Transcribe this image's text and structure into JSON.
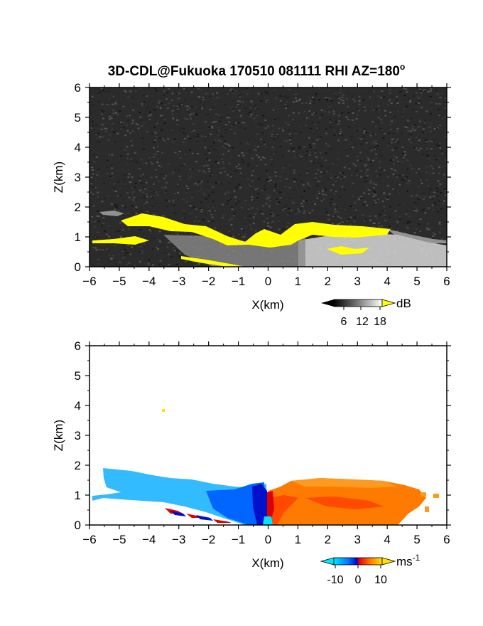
{
  "title": "3D-CDL@Fukuoka 170510 081111 RHI AZ=180",
  "title_superscript": "o",
  "chart_data": [
    {
      "type": "heatmap",
      "name": "intensity",
      "xlabel": "X(km)",
      "ylabel": "Z(km)",
      "xlim": [
        -6,
        6
      ],
      "ylim": [
        0,
        6
      ],
      "xticks": [
        "-6",
        "-5",
        "-4",
        "-3",
        "-2",
        "-1",
        "0",
        "1",
        "2",
        "3",
        "4",
        "5",
        "6"
      ],
      "yticks": [
        "0",
        "1",
        "2",
        "3",
        "4",
        "5",
        "6"
      ],
      "colorbar": {
        "unit": "dB",
        "ticks": [
          "6",
          "12",
          "18"
        ],
        "range": [
          0,
          20
        ],
        "saturation_color": "#ffff00"
      },
      "background_noise_color": "#2b2b2b",
      "echo_layer_top_km": [
        [
          -6,
          0.9
        ],
        [
          -5.5,
          0.85
        ],
        [
          -5,
          1.2
        ],
        [
          -4,
          1.3
        ],
        [
          -3,
          1.25
        ],
        [
          -2,
          1.2
        ],
        [
          -1,
          0.9
        ],
        [
          0,
          1.2
        ],
        [
          1,
          1.45
        ],
        [
          2,
          1.4
        ],
        [
          3,
          1.35
        ],
        [
          4,
          1.3
        ],
        [
          5,
          0.9
        ],
        [
          6,
          0.8
        ]
      ],
      "echo_layer_bottom_km": [
        [
          -6,
          0.8
        ],
        [
          -5,
          0.7
        ],
        [
          -4,
          0.75
        ],
        [
          -3,
          0.7
        ],
        [
          -2,
          0.5
        ],
        [
          -1,
          0.35
        ],
        [
          0,
          0.3
        ],
        [
          1,
          0.0
        ],
        [
          2,
          0.0
        ],
        [
          3,
          0.0
        ],
        [
          4,
          0.0
        ],
        [
          5,
          0.1
        ],
        [
          6,
          0.2
        ]
      ]
    },
    {
      "type": "heatmap",
      "name": "radial_velocity",
      "xlabel": "X(km)",
      "ylabel": "Z(km)",
      "xlim": [
        -6,
        6
      ],
      "ylim": [
        0,
        6
      ],
      "xticks": [
        "-6",
        "-5",
        "-4",
        "-3",
        "-2",
        "-1",
        "0",
        "1",
        "2",
        "3",
        "4",
        "5",
        "6"
      ],
      "yticks": [
        "0",
        "1",
        "2",
        "3",
        "4",
        "5",
        "6"
      ],
      "colorbar": {
        "unit": "ms",
        "unit_superscript": "-1",
        "ticks": [
          "-10",
          "0",
          "10"
        ],
        "range": [
          -15,
          15
        ]
      },
      "velocity_left_of_origin_ms": -10,
      "velocity_right_of_origin_ms": 8,
      "echo_layer_top_km": [
        [
          -5.5,
          1.85
        ],
        [
          -4,
          1.7
        ],
        [
          -3,
          1.5
        ],
        [
          -2,
          1.35
        ],
        [
          -1,
          1.2
        ],
        [
          0,
          1.3
        ],
        [
          1,
          1.5
        ],
        [
          2,
          1.45
        ],
        [
          3,
          1.4
        ],
        [
          4,
          1.3
        ],
        [
          5,
          1.1
        ],
        [
          5.9,
          0.9
        ]
      ],
      "echo_layer_bottom_km": [
        [
          -6,
          0.8
        ],
        [
          -5,
          0.75
        ],
        [
          -4,
          0.7
        ],
        [
          -3,
          0.6
        ],
        [
          -2,
          0.45
        ],
        [
          -1,
          0.2
        ],
        [
          0,
          0
        ],
        [
          1,
          0
        ],
        [
          2,
          0
        ],
        [
          3,
          0
        ],
        [
          4,
          0
        ],
        [
          5,
          0.2
        ],
        [
          5.9,
          0.3
        ]
      ]
    }
  ]
}
